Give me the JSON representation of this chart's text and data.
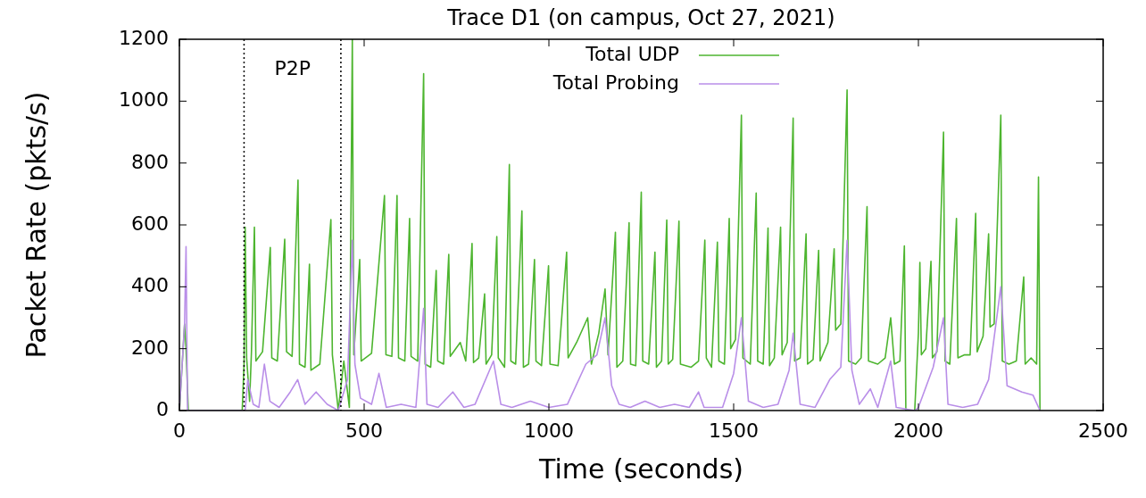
{
  "chart_data": {
    "type": "line",
    "title": "Trace D1 (on campus, Oct 27, 2021)",
    "xlabel": "Time (seconds)",
    "ylabel": "Packet Rate (pkts/s)",
    "xlim": [
      0,
      2500
    ],
    "xticks": [
      0,
      500,
      1000,
      1500,
      2000,
      2500
    ],
    "ylim": [
      0,
      1200
    ],
    "yticks": [
      0,
      200,
      400,
      600,
      800,
      1000,
      1200
    ],
    "grid": false,
    "legend": "top",
    "marker": "none",
    "ref_lines": [
      {
        "axis": "x",
        "value": 175,
        "line_style": "dotted",
        "color": "#000000"
      },
      {
        "axis": "x",
        "value": 437,
        "line_style": "dotted",
        "color": "#000000"
      }
    ],
    "annotations": [
      "P2P"
    ],
    "series": [
      {
        "name": "Total UDP",
        "color": "#4db52f",
        "x": [
          0,
          14,
          18,
          24,
          170,
          175,
          178,
          182,
          190,
          195,
          203,
          207,
          225,
          246,
          250,
          265,
          285,
          290,
          305,
          321,
          325,
          340,
          352,
          356,
          380,
          410,
          414,
          430,
          445,
          460,
          468,
          472,
          488,
          492,
          520,
          555,
          559,
          575,
          589,
          593,
          610,
          623,
          627,
          645,
          661,
          665,
          680,
          695,
          699,
          715,
          729,
          733,
          760,
          775,
          792,
          796,
          810,
          826,
          830,
          845,
          859,
          863,
          880,
          893,
          897,
          910,
          927,
          931,
          945,
          961,
          965,
          980,
          999,
          1003,
          1025,
          1048,
          1052,
          1075,
          1105,
          1115,
          1135,
          1152,
          1160,
          1180,
          1184,
          1200,
          1217,
          1221,
          1235,
          1250,
          1254,
          1270,
          1287,
          1291,
          1305,
          1319,
          1323,
          1335,
          1352,
          1356,
          1385,
          1405,
          1422,
          1426,
          1440,
          1456,
          1460,
          1475,
          1488,
          1492,
          1505,
          1521,
          1525,
          1545,
          1561,
          1565,
          1580,
          1593,
          1597,
          1610,
          1627,
          1631,
          1645,
          1661,
          1665,
          1680,
          1696,
          1700,
          1715,
          1730,
          1734,
          1755,
          1772,
          1776,
          1790,
          1807,
          1811,
          1830,
          1845,
          1861,
          1865,
          1890,
          1910,
          1925,
          1935,
          1950,
          1962,
          1966,
          1990,
          2000,
          2004,
          2008,
          2020,
          2034,
          2038,
          2050,
          2068,
          2072,
          2085,
          2103,
          2107,
          2125,
          2140,
          2155,
          2159,
          2175,
          2190,
          2194,
          2205,
          2223,
          2227,
          2245,
          2265,
          2285,
          2289,
          2305,
          2320,
          2325,
          2329
        ],
        "values": [
          0,
          280,
          200,
          0,
          0,
          150,
          593,
          170,
          30,
          190,
          593,
          160,
          190,
          527,
          170,
          160,
          554,
          190,
          175,
          745,
          150,
          140,
          473,
          130,
          150,
          617,
          180,
          0,
          160,
          10,
          1200,
          180,
          488,
          160,
          185,
          695,
          180,
          175,
          695,
          170,
          160,
          621,
          175,
          160,
          1089,
          150,
          140,
          453,
          160,
          150,
          505,
          175,
          220,
          160,
          540,
          155,
          170,
          377,
          150,
          180,
          562,
          170,
          140,
          795,
          160,
          150,
          645,
          140,
          150,
          488,
          160,
          145,
          468,
          150,
          145,
          512,
          170,
          220,
          300,
          150,
          250,
          393,
          180,
          576,
          140,
          160,
          607,
          150,
          145,
          706,
          160,
          150,
          512,
          140,
          160,
          616,
          150,
          165,
          612,
          150,
          140,
          160,
          551,
          170,
          140,
          544,
          160,
          150,
          621,
          200,
          230,
          955,
          170,
          150,
          703,
          160,
          150,
          590,
          145,
          170,
          593,
          180,
          220,
          945,
          160,
          170,
          571,
          150,
          165,
          518,
          160,
          220,
          523,
          260,
          280,
          1036,
          160,
          150,
          170,
          659,
          160,
          150,
          170,
          300,
          150,
          160,
          532,
          0,
          0,
          250,
          479,
          180,
          200,
          482,
          170,
          190,
          900,
          160,
          150,
          621,
          170,
          180,
          180,
          637,
          190,
          240,
          571,
          270,
          280,
          955,
          160,
          150,
          160,
          432,
          150,
          170,
          150,
          755,
          0
        ]
      },
      {
        "name": "Total Probing",
        "color": "#b98ee8",
        "x": [
          0,
          14,
          18,
          22,
          178,
          185,
          200,
          215,
          230,
          245,
          270,
          300,
          320,
          340,
          370,
          400,
          430,
          455,
          468,
          475,
          490,
          520,
          540,
          560,
          600,
          640,
          661,
          670,
          700,
          740,
          770,
          800,
          850,
          870,
          900,
          950,
          1000,
          1050,
          1100,
          1130,
          1152,
          1170,
          1190,
          1220,
          1260,
          1300,
          1340,
          1380,
          1405,
          1420,
          1470,
          1500,
          1521,
          1540,
          1580,
          1620,
          1650,
          1661,
          1680,
          1720,
          1760,
          1790,
          1807,
          1820,
          1840,
          1870,
          1890,
          1925,
          1940,
          1990,
          2000,
          2040,
          2068,
          2080,
          2120,
          2160,
          2190,
          2223,
          2240,
          2280,
          2310,
          2329
        ],
        "values": [
          0,
          280,
          530,
          0,
          0,
          100,
          20,
          10,
          150,
          30,
          10,
          60,
          100,
          20,
          60,
          20,
          0,
          100,
          550,
          150,
          40,
          20,
          120,
          10,
          20,
          10,
          330,
          20,
          10,
          60,
          10,
          20,
          160,
          20,
          10,
          30,
          10,
          20,
          150,
          180,
          300,
          80,
          20,
          10,
          30,
          10,
          20,
          10,
          60,
          10,
          10,
          120,
          300,
          30,
          10,
          20,
          130,
          250,
          20,
          10,
          100,
          140,
          550,
          130,
          20,
          70,
          10,
          160,
          10,
          0,
          10,
          140,
          300,
          20,
          10,
          20,
          100,
          400,
          80,
          60,
          50,
          0
        ]
      }
    ]
  }
}
